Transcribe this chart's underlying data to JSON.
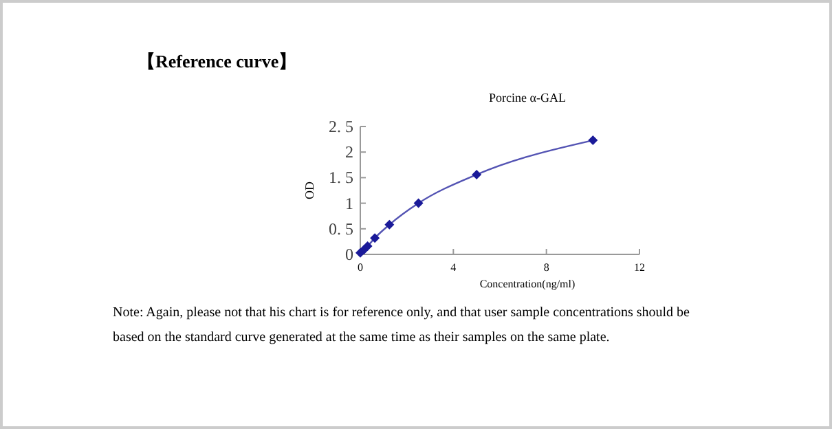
{
  "chart_data": {
    "type": "line",
    "title": "【Reference curve】",
    "subtitle": "Porcine α-GAL",
    "xlabel": "Concentration(ng/ml)",
    "ylabel": "OD",
    "x": [
      0,
      0.156,
      0.312,
      0.625,
      1.25,
      2.5,
      5,
      10
    ],
    "series": [
      {
        "color": "#1a1a99",
        "values": [
          0.03,
          0.09,
          0.16,
          0.32,
          0.58,
          1.0,
          1.56,
          2.23
        ]
      }
    ],
    "xlim": [
      0,
      12
    ],
    "xticks": [
      0,
      4,
      8,
      12
    ],
    "ylim": [
      0,
      2.5
    ],
    "yticks": [
      {
        "value": 0,
        "label": "0"
      },
      {
        "value": 0.5,
        "label": "0. 5"
      },
      {
        "value": 1,
        "label": "1"
      },
      {
        "value": 1.5,
        "label": "1. 5"
      },
      {
        "value": 2,
        "label": "2"
      },
      {
        "value": 2.5,
        "label": "2. 5"
      }
    ],
    "marker": "diamond",
    "grid": false,
    "annotations": [
      "Note: Again, please not that his chart is for reference only, and that user sample concentrations should be based on the standard curve generated at the same time as their samples on the same plate."
    ]
  }
}
